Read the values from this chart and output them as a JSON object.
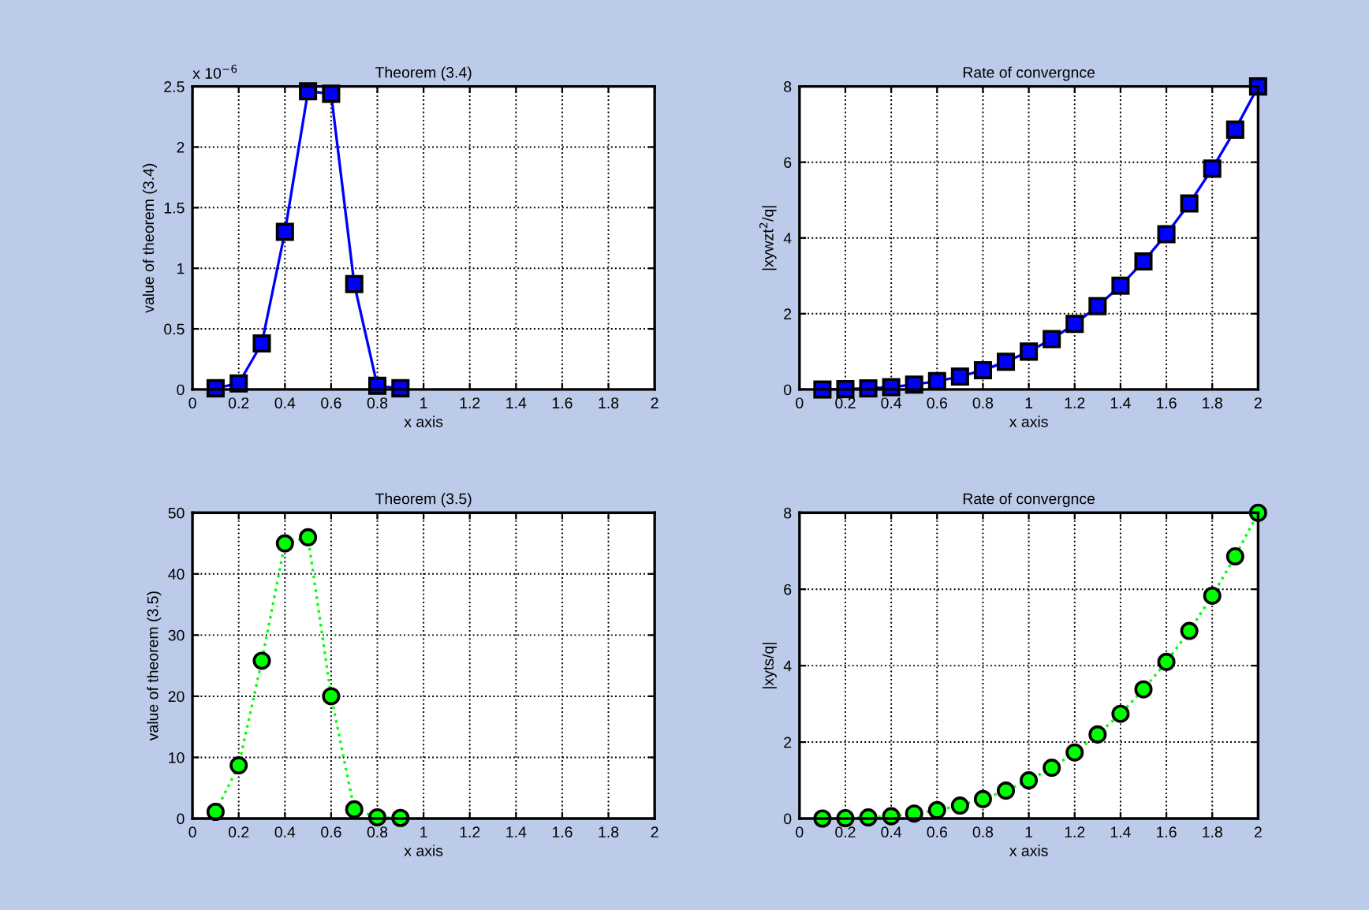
{
  "chart_data": [
    {
      "type": "line",
      "title": "Theorem (3.4)",
      "xlabel": "x axis",
      "ylabel": "value of theorem (3.4)",
      "annotations": [
        "x 10$^{−6}$"
      ],
      "x": [
        0.1,
        0.2,
        0.3,
        0.4,
        0.5,
        0.6,
        0.7,
        0.8,
        0.9
      ],
      "series": [
        {
          "color": "#0000ff",
          "values": [
            0.01,
            0.05,
            0.38,
            1.3,
            2.46,
            2.44,
            0.87,
            0.03,
            0.01
          ]
        }
      ],
      "xlim": [
        0,
        2
      ],
      "xticks": [
        0,
        0.2,
        0.4,
        0.6,
        0.8,
        1,
        1.2,
        1.4,
        1.6,
        1.8,
        2
      ],
      "ylim": [
        0,
        2.5
      ],
      "yticks": [
        0,
        0.5,
        1,
        1.5,
        2,
        2.5
      ],
      "grid": true,
      "marker": "square",
      "line_style": "solid"
    },
    {
      "type": "line",
      "title": "Rate of convergnce",
      "xlabel": "x axis",
      "ylabel": "|xywzt$^{2}$/q|",
      "x": [
        0.1,
        0.2,
        0.3,
        0.4,
        0.5,
        0.6,
        0.7,
        0.8,
        0.9,
        1,
        1.1,
        1.2,
        1.3,
        1.4,
        1.5,
        1.6,
        1.7,
        1.8,
        1.9,
        2
      ],
      "series": [
        {
          "color": "#0000ff",
          "values": [
            0,
            0.01,
            0.03,
            0.06,
            0.13,
            0.22,
            0.34,
            0.51,
            0.73,
            1,
            1.33,
            1.73,
            2.2,
            2.74,
            3.38,
            4.1,
            4.91,
            5.83,
            6.86,
            8
          ]
        }
      ],
      "xlim": [
        0,
        2
      ],
      "xticks": [
        0,
        0.2,
        0.4,
        0.6,
        0.8,
        1,
        1.2,
        1.4,
        1.6,
        1.8,
        2
      ],
      "ylim": [
        0,
        8
      ],
      "yticks": [
        0,
        2,
        4,
        6,
        8
      ],
      "grid": true,
      "marker": "square",
      "line_style": "solid"
    },
    {
      "type": "line",
      "title": "Theorem (3.5)",
      "xlabel": "x axis",
      "ylabel": "value of theorem (3.5)",
      "x": [
        0.1,
        0.2,
        0.3,
        0.4,
        0.5,
        0.6,
        0.7,
        0.8,
        0.9
      ],
      "series": [
        {
          "color": "#00ff00",
          "values": [
            1.1,
            8.7,
            25.8,
            45,
            46,
            20,
            1.5,
            0.2,
            0.1
          ]
        }
      ],
      "xlim": [
        0,
        2
      ],
      "xticks": [
        0,
        0.2,
        0.4,
        0.6,
        0.8,
        1,
        1.2,
        1.4,
        1.6,
        1.8,
        2
      ],
      "ylim": [
        0,
        50
      ],
      "yticks": [
        0,
        10,
        20,
        30,
        40,
        50
      ],
      "grid": true,
      "marker": "circle",
      "line_style": "dotted"
    },
    {
      "type": "line",
      "title": "Rate of convergnce",
      "xlabel": "x axis",
      "ylabel": "|xyts/q|",
      "x": [
        0.1,
        0.2,
        0.3,
        0.4,
        0.5,
        0.6,
        0.7,
        0.8,
        0.9,
        1,
        1.1,
        1.2,
        1.3,
        1.4,
        1.5,
        1.6,
        1.7,
        1.8,
        1.9,
        2
      ],
      "series": [
        {
          "color": "#00ff00",
          "values": [
            0,
            0.01,
            0.03,
            0.06,
            0.13,
            0.22,
            0.34,
            0.51,
            0.73,
            1,
            1.33,
            1.73,
            2.2,
            2.74,
            3.38,
            4.1,
            4.91,
            5.83,
            6.86,
            8
          ]
        }
      ],
      "xlim": [
        0,
        2
      ],
      "xticks": [
        0,
        0.2,
        0.4,
        0.6,
        0.8,
        1,
        1.2,
        1.4,
        1.6,
        1.8,
        2
      ],
      "ylim": [
        0,
        8
      ],
      "yticks": [
        0,
        2,
        4,
        6,
        8
      ],
      "grid": true,
      "marker": "circle",
      "line_style": "dotted"
    }
  ]
}
